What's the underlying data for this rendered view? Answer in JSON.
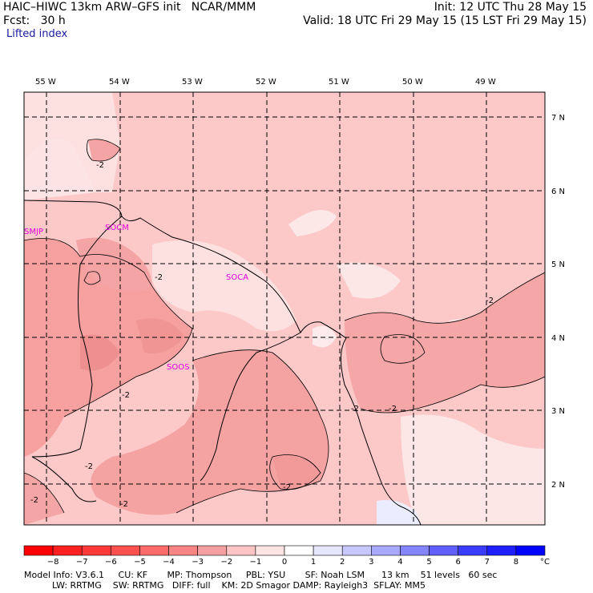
{
  "header": {
    "model_line": "HAIC–HIWC 13km ARW–GFS init   NCAR/MMM",
    "init_line": "Init: 12 UTC Thu 28 May 15",
    "fcst_line": "Fcst:   30 h",
    "valid_line": "Valid: 18 UTC Fri 29 May 15 (15 LST Fri 29 May 15)",
    "field": "Lifted index"
  },
  "map": {
    "lon_labels": [
      "55 W",
      "54 W",
      "53 W",
      "52 W",
      "51 W",
      "50 W",
      "49 W"
    ],
    "lat_labels": [
      "7 N",
      "6 N",
      "5 N",
      "4 N",
      "3 N",
      "2 N"
    ],
    "stations": [
      "SMJP",
      "SOCM",
      "SOCA",
      "SOOS"
    ],
    "contour_labels": [
      "-2",
      "-2",
      "-2",
      "-2",
      "-2",
      "-2",
      "-2",
      "-2",
      "-2",
      "-2"
    ]
  },
  "colorbar": {
    "levels": [
      "−8",
      "−7",
      "−6",
      "−5",
      "−4",
      "−3",
      "−2",
      "−1",
      "0",
      "1",
      "2",
      "3",
      "4",
      "5",
      "6",
      "7",
      "8"
    ],
    "unit": "°C",
    "colors": [
      "#ff0000",
      "#ff2020",
      "#ff3838",
      "#ff5050",
      "#ff6a6a",
      "#f88484",
      "#f4a0a0",
      "#fcc4c4",
      "#fde4e4",
      "#ffffff",
      "#e6e6ff",
      "#c8c8ff",
      "#a8a8ff",
      "#8484ff",
      "#6060ff",
      "#3c3cff",
      "#1e1eff",
      "#0000ff"
    ]
  },
  "footer": {
    "line1": "Model Info: V3.6.1     CU: KF       MP: Thompson     PBL: YSU       SF: Noah LSM      13 km    51 levels   60 sec",
    "line2": "          LW: RRTMG    SW: RRTMG   DIFF: full    KM: 2D Smagor DAMP: Rayleigh3  SFLAY: MM5"
  }
}
